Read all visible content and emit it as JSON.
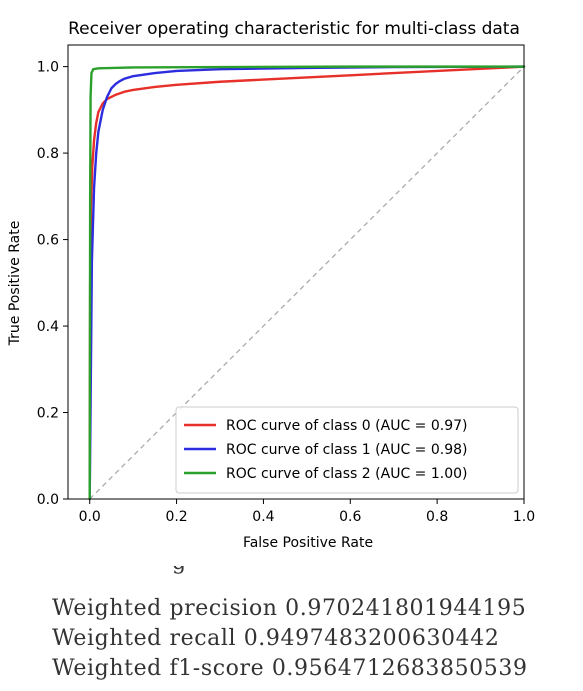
{
  "chart_data": {
    "type": "line",
    "title": "Receiver operating characteristic for multi-class data",
    "xlabel": "False Positive Rate",
    "ylabel": "True Positive Rate",
    "xlim": [
      -0.05,
      1.0
    ],
    "ylim": [
      0.0,
      1.05
    ],
    "xticks": [
      "0.0",
      "0.2",
      "0.4",
      "0.6",
      "0.8",
      "1.0"
    ],
    "yticks": [
      "0.0",
      "0.2",
      "0.4",
      "0.6",
      "0.8",
      "1.0"
    ],
    "grid": false,
    "legend_position": "lower-right",
    "series": [
      {
        "name": "ROC curve of class 0 (AUC = 0.97)",
        "color": "#e8302a",
        "x": [
          0.0,
          0.001,
          0.003,
          0.006,
          0.01,
          0.015,
          0.02,
          0.03,
          0.04,
          0.06,
          0.08,
          0.1,
          0.15,
          0.2,
          0.3,
          0.4,
          0.5,
          0.6,
          0.7,
          0.8,
          0.9,
          1.0
        ],
        "y": [
          0.0,
          0.5,
          0.68,
          0.77,
          0.83,
          0.87,
          0.895,
          0.915,
          0.925,
          0.935,
          0.942,
          0.946,
          0.953,
          0.958,
          0.965,
          0.97,
          0.975,
          0.98,
          0.985,
          0.99,
          0.995,
          1.0
        ]
      },
      {
        "name": "ROC curve of class 1 (AUC = 0.98)",
        "color": "#2d2de0",
        "x": [
          0.0,
          0.005,
          0.01,
          0.015,
          0.02,
          0.03,
          0.04,
          0.05,
          0.06,
          0.07,
          0.08,
          0.1,
          0.15,
          0.2,
          0.3,
          0.5,
          0.7,
          1.0
        ],
        "y": [
          0.0,
          0.55,
          0.72,
          0.8,
          0.85,
          0.9,
          0.93,
          0.95,
          0.96,
          0.967,
          0.972,
          0.978,
          0.985,
          0.99,
          0.994,
          0.997,
          0.999,
          1.0
        ]
      },
      {
        "name": "ROC curve of class 2 (AUC = 1.00)",
        "color": "#2ca02c",
        "x": [
          0.0,
          0.001,
          0.002,
          0.004,
          0.008,
          0.02,
          0.1,
          0.3,
          0.6,
          1.0
        ],
        "y": [
          0.0,
          0.7,
          0.93,
          0.985,
          0.994,
          0.996,
          0.998,
          0.999,
          1.0,
          1.0
        ]
      }
    ],
    "reference_line": {
      "x": [
        0.0,
        1.0
      ],
      "y": [
        0.0,
        1.0
      ],
      "color": "#aaaaaa",
      "style": "dashed"
    }
  },
  "metrics": [
    "Weighted precision 0.970241801944195",
    "Weighted recall 0.9497483200630442",
    "Weighted f1-score 0.9564712683850539"
  ],
  "colors": {
    "axis": "#000000",
    "legend_border": "#cccccc",
    "metric_text": "#333333"
  }
}
